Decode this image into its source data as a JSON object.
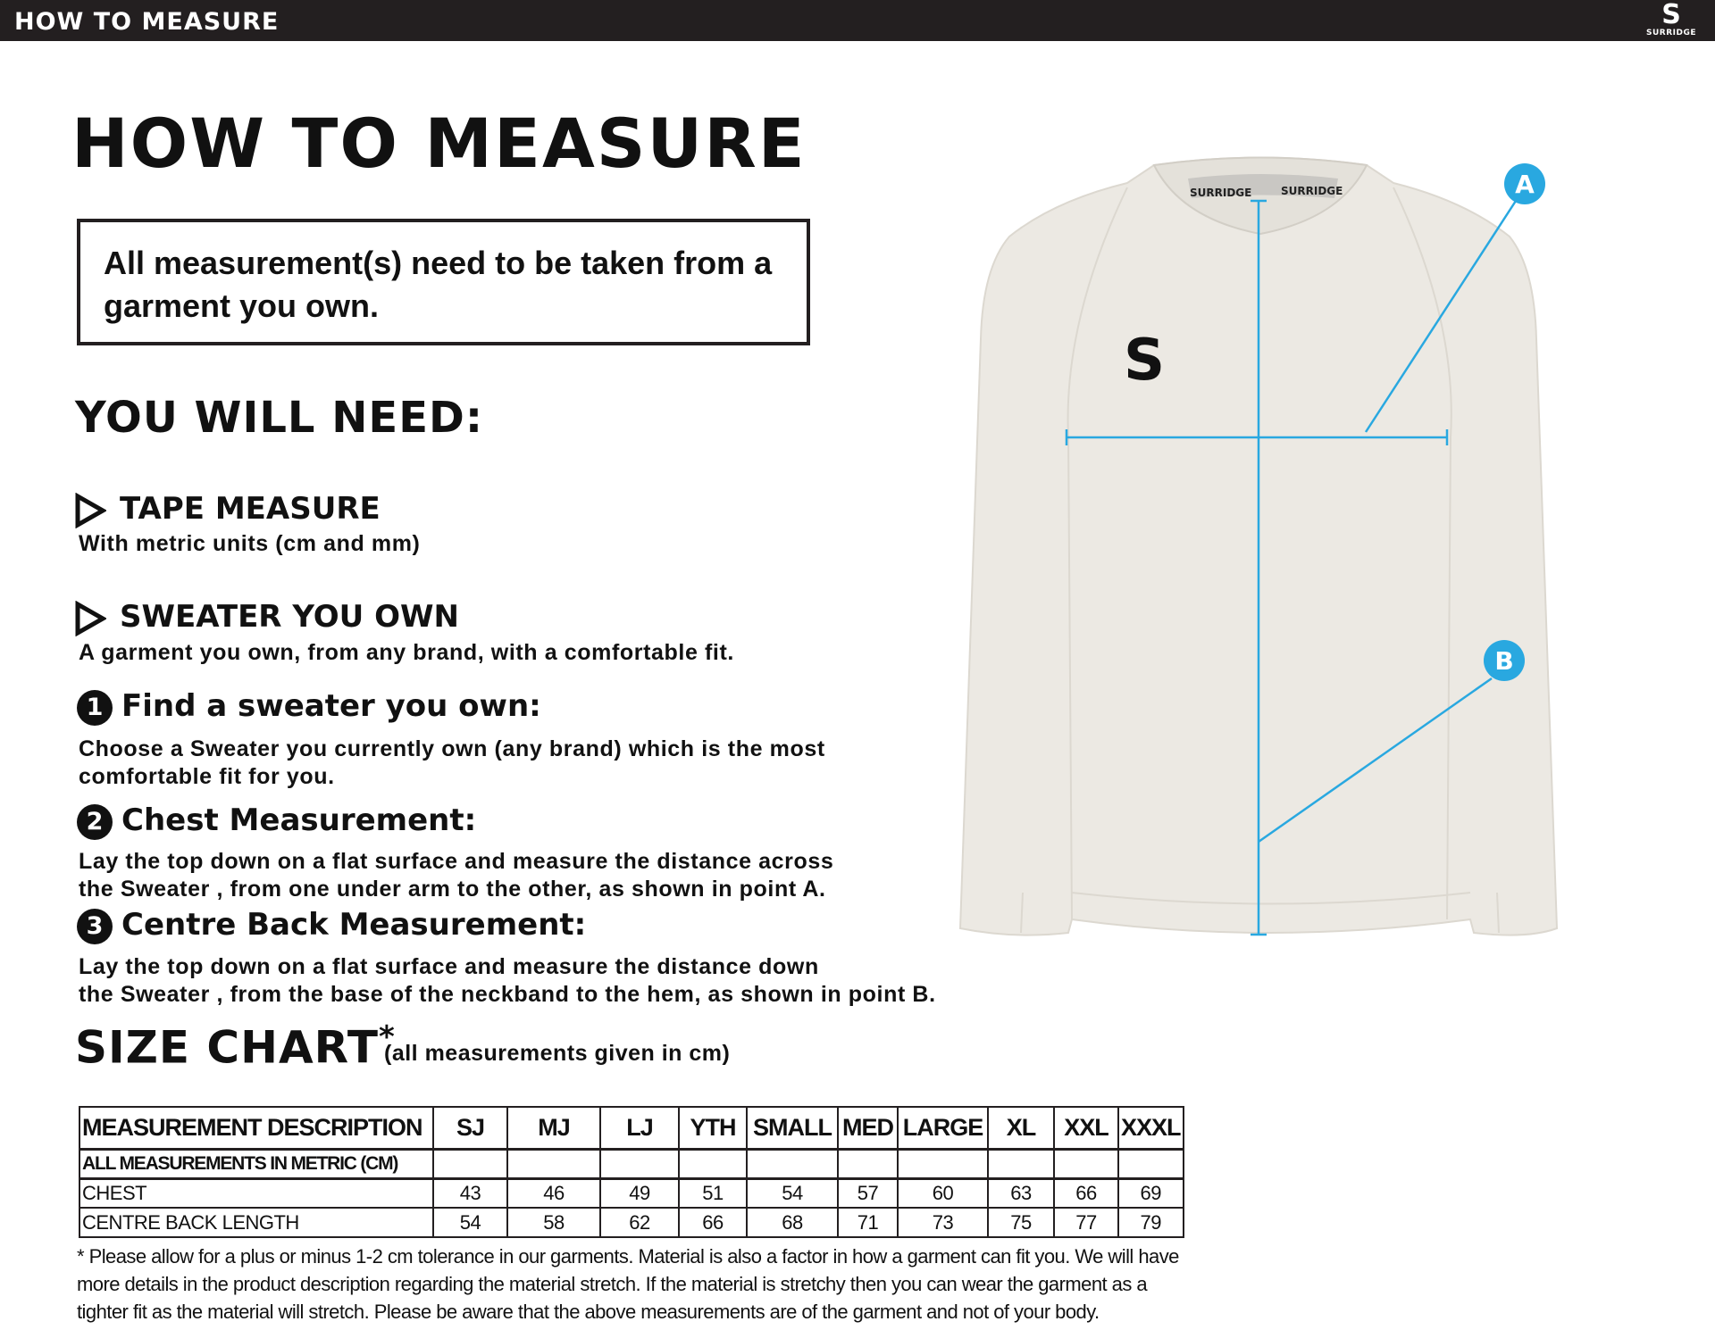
{
  "header": {
    "title": "HOW TO MEASURE",
    "brand": "SURRIDGE",
    "logo_letter": "S"
  },
  "page_title": "HOW TO MEASURE",
  "notice": "All measurement(s) need to be taken from a garment you own.",
  "you_will_need": {
    "heading": "YOU WILL NEED:",
    "items": [
      {
        "title": "TAPE MEASURE",
        "desc": "With metric units (cm and mm)",
        "icon": "triangle-right-outline-icon"
      },
      {
        "title": "SWEATER YOU OWN",
        "desc": "A garment you own, from any brand, with a comfortable fit.",
        "icon": "triangle-right-outline-icon"
      }
    ]
  },
  "steps": [
    {
      "num": "1",
      "title": "Find a sweater you own:",
      "lines": [
        "Choose a Sweater you currently own (any brand) which is the most",
        "comfortable fit for you."
      ]
    },
    {
      "num": "2",
      "title": "Chest Measurement:",
      "lines": [
        "Lay the top down on a flat surface and measure the distance across",
        "the Sweater , from one under arm to the other, as shown in point A."
      ]
    },
    {
      "num": "3",
      "title": "Centre Back Measurement:",
      "lines": [
        "Lay the top down on a flat surface and measure the distance down",
        "the Sweater , from the base of the neckband to the hem, as shown in point B."
      ]
    }
  ],
  "diagram": {
    "point_a": "A",
    "point_b": "B",
    "neck_label": "SURRIDGE",
    "accent": "#29a8e0"
  },
  "size_chart": {
    "title": "SIZE CHART",
    "asterisk": "*",
    "subtitle": "(all measurements given in cm)",
    "header": [
      "MEASUREMENT DESCRIPTION",
      "SJ",
      "MJ",
      "LJ",
      "YTH",
      "SMALL",
      "MED",
      "LARGE",
      "XL",
      "XXL",
      "XXXL"
    ],
    "subheader": "ALL MEASUREMENTS IN METRIC (CM)",
    "rows": [
      {
        "label": "CHEST",
        "values": [
          "43",
          "46",
          "49",
          "51",
          "54",
          "57",
          "60",
          "63",
          "66",
          "69"
        ]
      },
      {
        "label": "CENTRE BACK LENGTH",
        "values": [
          "54",
          "58",
          "62",
          "66",
          "68",
          "71",
          "73",
          "75",
          "77",
          "79"
        ]
      }
    ]
  },
  "footnote": [
    "* Please allow for a plus or minus 1-2 cm tolerance in our garments. Material is also a factor in how a garment can fit you. We will have",
    "more details in the product description regarding the material stretch.  If the material is stretchy then you can wear the garment as a",
    "tighter fit as the material will stretch.  Please be aware that the above measurements are of the garment and not of your body."
  ]
}
